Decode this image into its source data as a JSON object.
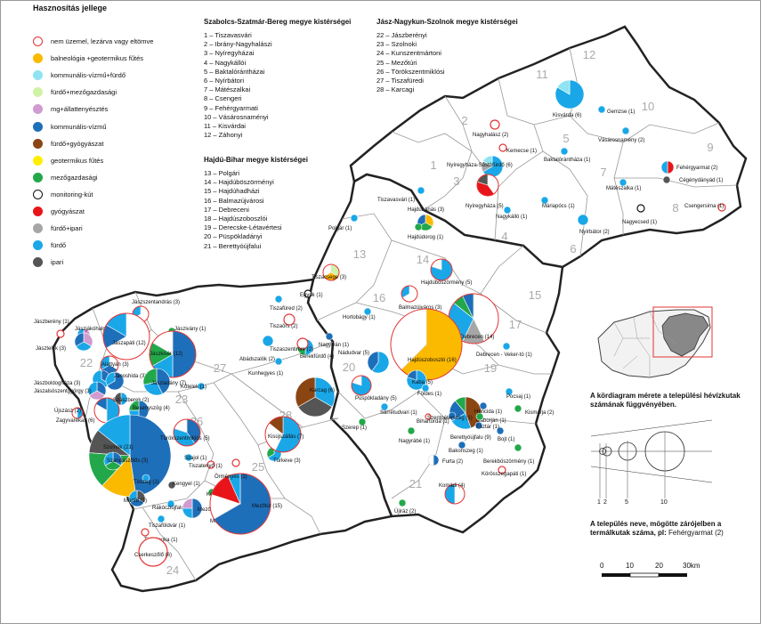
{
  "legend": {
    "title": "Hasznosítás jellege",
    "items": [
      {
        "label": "nem üzemel, lezárva vagy eltömve",
        "color": "#ffffff",
        "border": "#e53333",
        "icon": "empty-red-circle"
      },
      {
        "label": "balneológia +geotermikus fűtés",
        "color": "#fbb900",
        "icon": "orange-circle"
      },
      {
        "label": "kommunális-vízmű+fürdő",
        "color": "#8fe3f2",
        "icon": "light-cyan-circle"
      },
      {
        "label": "fürdő+mezőgazdasági",
        "color": "#d0f2a6",
        "icon": "light-green-circle"
      },
      {
        "label": "mg+állattenyésztés",
        "color": "#cf9bd0",
        "icon": "lilac-circle"
      },
      {
        "label": "kommunális-vízmű",
        "color": "#1e6fba",
        "icon": "blue-circle"
      },
      {
        "label": "fürdő+gyógyászat",
        "color": "#8b4513",
        "icon": "brown-circle"
      },
      {
        "label": "geotermikus fűtés",
        "color": "#ffee00",
        "icon": "yellow-circle"
      },
      {
        "label": "mezőgazdasági",
        "color": "#22a84a",
        "icon": "green-circle"
      },
      {
        "label": "monitoring-kút",
        "color": "#ffffff",
        "border": "#111111",
        "icon": "empty-black-circle"
      },
      {
        "label": "gyógyászat",
        "color": "#e8141a",
        "icon": "red-circle"
      },
      {
        "label": "fürdő+ipari",
        "color": "#a6a6a6",
        "icon": "grey-circle"
      },
      {
        "label": "fürdő",
        "color": "#1aa7e8",
        "icon": "sky-blue-circle"
      },
      {
        "label": "ipari",
        "color": "#555555",
        "icon": "dark-grey-circle"
      }
    ]
  },
  "county_lists": [
    {
      "title": "Szabolcs-Szatmár-Bereg megye kistérségei",
      "lines": [
        "1 – Tiszavasvári",
        "2 – Ibrány-Nagyhalászi",
        "3 – Nyíregyházai",
        "4 – Nagykállói",
        "5 – Baktalórántházai",
        "6 – Nyírbátori",
        "7 – Mátészalkai",
        "8 – Csengeri",
        "9 – Fehérgyarmati",
        "10 – Vásárosnaményi",
        "11 – Kisvárdai",
        "12 – Záhonyi"
      ]
    },
    {
      "title": "Hajdú-Bihar megye kistérségei",
      "lines": [
        "13 – Polgári",
        "14 – Hajdúböszörményi",
        "15 – Hajdúhadházi",
        "16 – Balmazújvárosi",
        "17 – Debreceni",
        "18 – Hajdúszoboszlói",
        "19 – Derecske-Létavértesi",
        "20 – Püspökladányi",
        "21 – Berettyóújfalui"
      ]
    },
    {
      "title": "Jász-Nagykun-Szolnok megye kistérségei",
      "lines": [
        "22 – Jászberényi",
        "23 – Szolnoki",
        "24 – Kunszentmártoni",
        "25 – Mezőtúri",
        "26 – Törökszentmiklósi",
        "27 – Tiszafüredi",
        "28 – Karcagi"
      ]
    }
  ],
  "map": {
    "region_numbers": [
      "1",
      "2",
      "3",
      "4",
      "5",
      "6",
      "7",
      "8",
      "9",
      "10",
      "11",
      "12",
      "13",
      "14",
      "15",
      "16",
      "17",
      "18",
      "19",
      "20",
      "21",
      "22",
      "23",
      "24",
      "25",
      "26",
      "27",
      "28"
    ],
    "place_labels": [
      "Kisvárda (6)",
      "Gemzse (1)",
      "Nagyhalász (2)",
      "Kemecse (1)",
      "Vásárosnamény (2)",
      "Nyíregyháza-Sóstófürdő (6)",
      "Baktalórántháza (1)",
      "Fehérgyarmat (2)",
      "Cégénydányád (1)",
      "Tiszavasvári (1)",
      "Nyíregyháza (5)",
      "Mátészalka (1)",
      "Nagykálló (1)",
      "Máriapócs (1)",
      "Nagyecsed (1)",
      "Csengersima (1)",
      "Nyírbátor (2)",
      "Hajdúnánás (3)",
      "Hajdúdorog (1)",
      "Polgár (1)",
      "Tiszacsege (3)",
      "Hajdúböszörmény (5)",
      "Egyek (1)",
      "Balmazújváros (3)",
      "Hortobágy (1)",
      "Debrecen (14)",
      "Debrecen - Veker-tó (1)",
      "Nádudvar (5)",
      "Hajdúszoboszló (16)",
      "Kaba (5)",
      "Püspökladány (5)",
      "Földes (1)",
      "Sárrétudvari (1)",
      "Bihartorda (1)",
      "Szerep (1)",
      "Nagyrábé (1)",
      "Berettyóújfalu (9)",
      "Pocsaj (1)",
      "Kismarja (2)",
      "Bojt (1)",
      "Bakonszeg (1)",
      "Furta (2)",
      "Berekböszörmény (1)",
      "Körösszegapáti (1)",
      "Komádi (4)",
      "Újiráz (2)",
      "Hencida (1)",
      "Szentpéterszeg (1)",
      "Gáborján (1)",
      "Esztár (1)",
      "Jászszentandrás (3)",
      "Jászjákóhalma (2)",
      "Jászberény (1)",
      "Jászapáti (12)",
      "Jászivány (1)",
      "Jászkisér (12)",
      "Jásztelek (3)",
      "Alattyán (3)",
      "Jászboldogháza (3)",
      "Jászalsószentgyörgy (3)",
      "Jánoshida (3)",
      "Jászladány (7)",
      "Újszász (2)",
      "Zagyvarékas (6)",
      "Szászberek (2)",
      "Besenyszög (4)",
      "Kőtelek (1)",
      "Szolnok (21)",
      "Szandaszőlős (3)",
      "Törökszentmiklós (5)",
      "Szajol (1)",
      "Tiszatenyő (1)",
      "Tószeg (1)",
      "Kengyel (1)",
      "Martfű (3)",
      "Rákócziújfalu (1)",
      "Tiszaföldvár (1)",
      "Mezőhék (4)",
      "Kétpó (1)",
      "Mesterszállás (2)",
      "Mezőtúr (15)",
      "Tiszainoka (1)",
      "Cserkeszőlő (6)",
      "Örményes (1)",
      "Túrkeve (3)",
      "Kisújszállás (7)",
      "Karcag (6)",
      "Kunhegyes (1)",
      "Abádszalók (2)",
      "Berekfürdő (4)",
      "Tiszaszentimre (2)",
      "Tiszaörs (2)",
      "Nagyiván (1)",
      "Tiszafüred (2)"
    ]
  },
  "size_legend": {
    "title": "A kördiagram mérete a települési hévízkutak számának függvényében.",
    "scale_labels": [
      "1",
      "2",
      "5",
      "10"
    ]
  },
  "name_note": {
    "text": "A település neve, mögötte zárójelben a termálkutak száma, pl:",
    "example": "Fehérgyarmat (2)"
  },
  "scale_bar": {
    "ticks": [
      "0",
      "10",
      "20",
      "30km"
    ]
  }
}
